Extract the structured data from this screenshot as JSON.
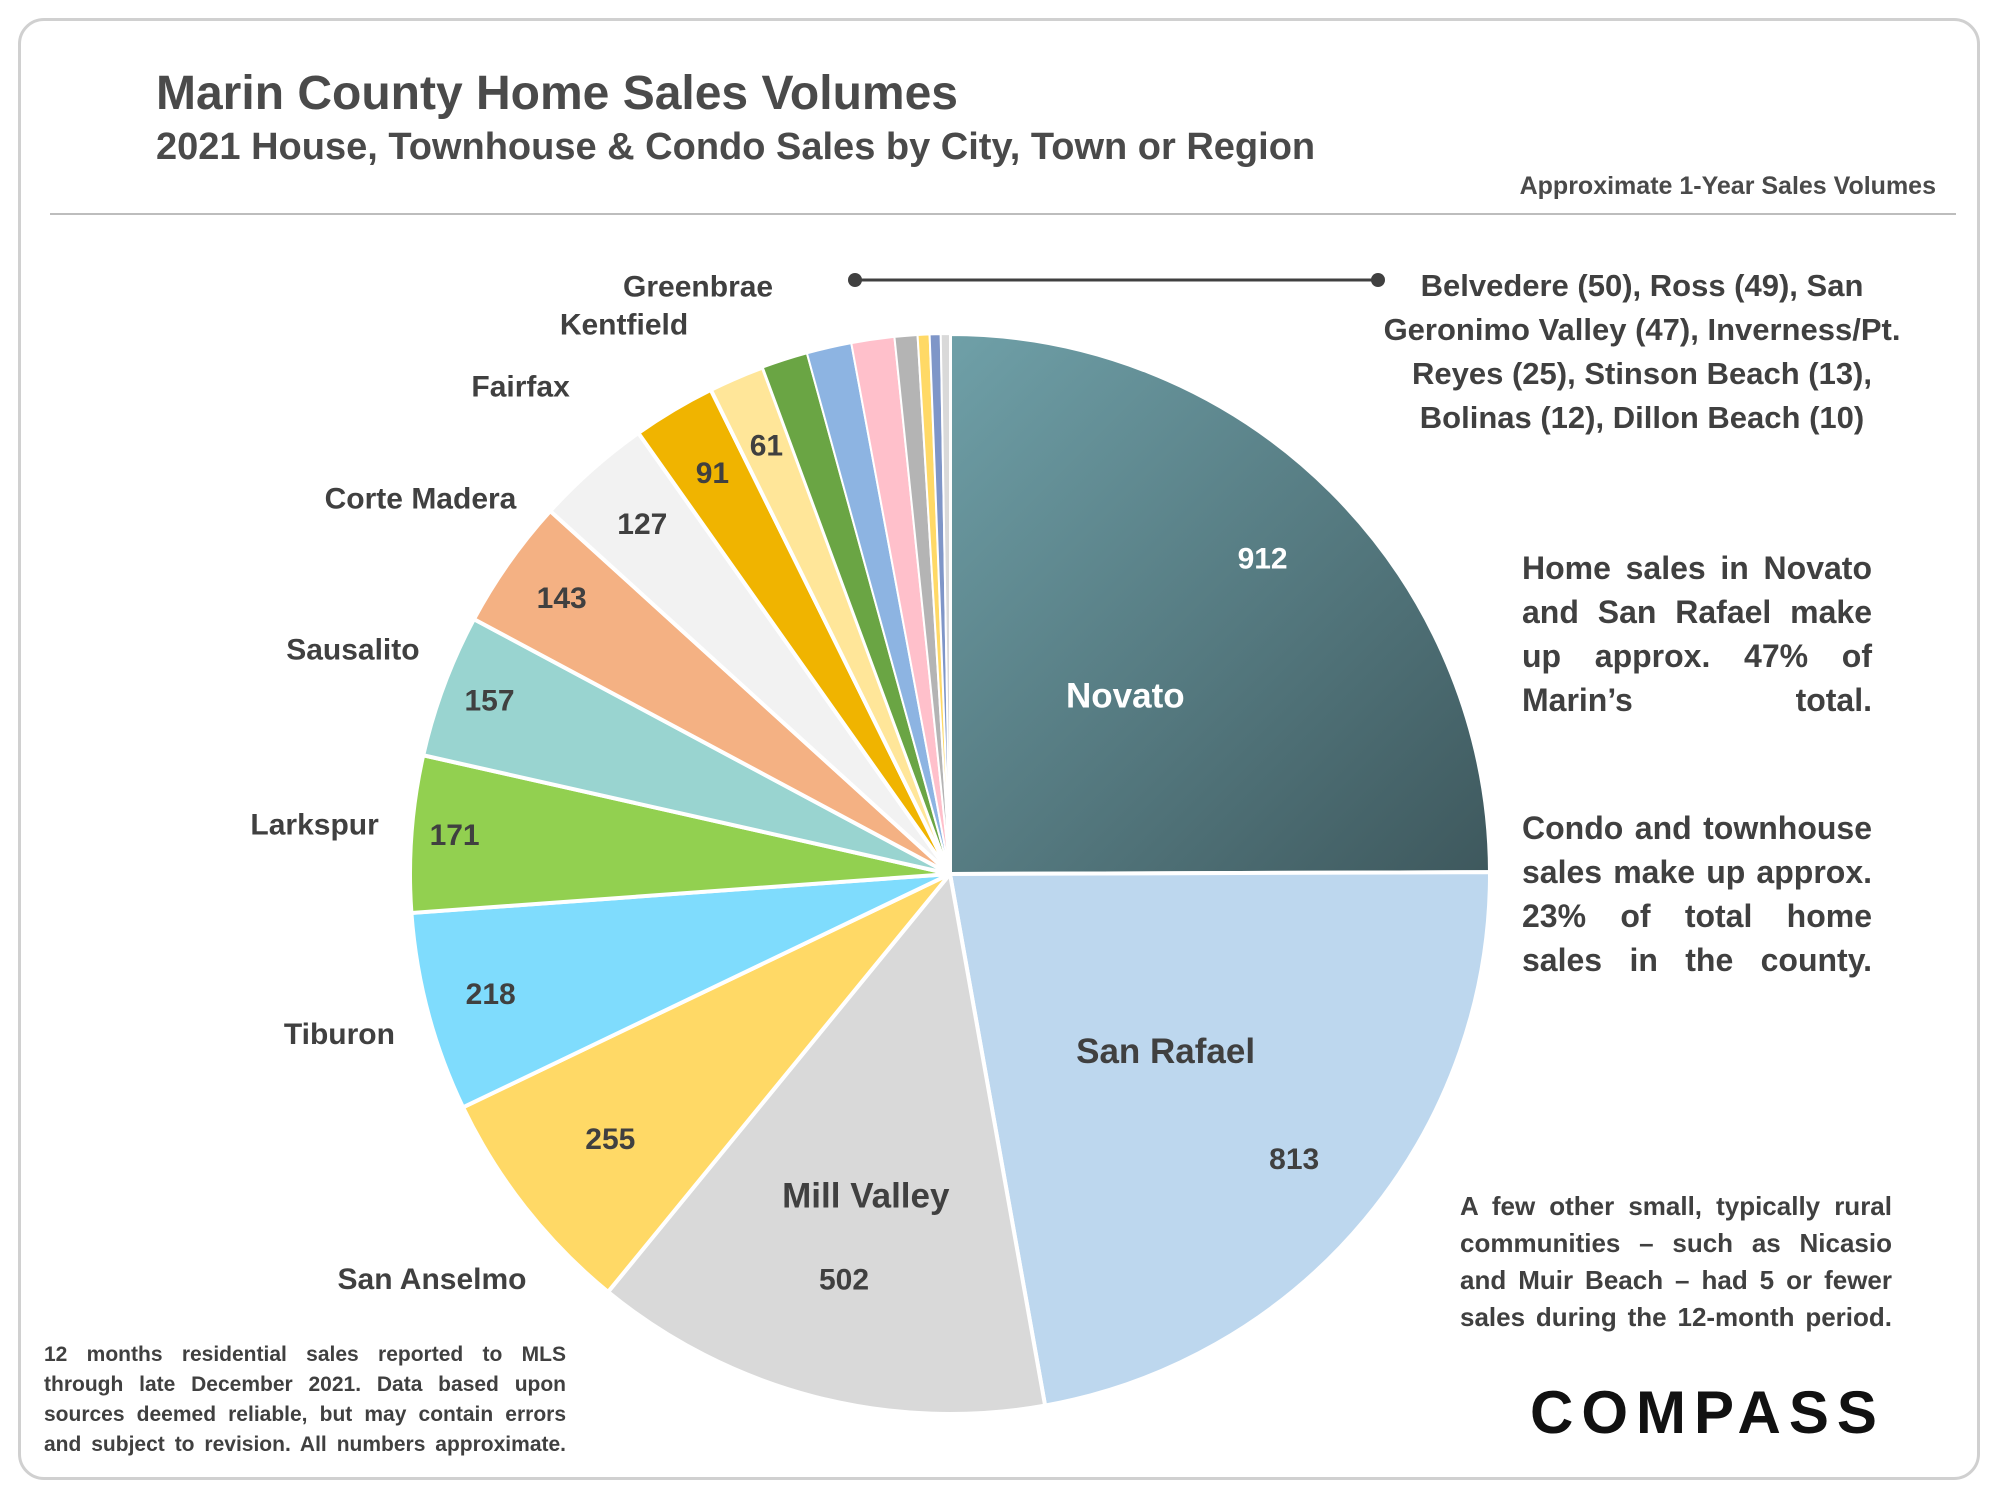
{
  "header": {
    "title": "Marin County Home Sales Volumes",
    "subtitle": "2021 House, Townhouse & Condo Sales by City, Town or Region",
    "corner_note": "Approximate 1-Year Sales Volumes"
  },
  "notes": {
    "small_cities": "Belvedere (50), Ross (49), San Geronimo Valley (47), Inverness/Pt. Reyes (25), Stinson Beach (13), Bolinas (12), Dillon Beach (10)",
    "novato_san_rafael": "Home sales in Novato and San Rafael make up approx. 47% of Marin’s total.",
    "condo_townhouse": "Condo and townhouse sales make up approx. 23% of total home sales in the county.",
    "rural": "A few other small, typically rural communities – such as Nicasio and Muir Beach – had 5 or fewer sales during the 12-month period."
  },
  "footnote": "12 months residential sales reported to MLS through late December 2021. Data based upon sources deemed reliable, but may contain errors and subject to revision. All numbers approximate.",
  "logo": "COMPASS",
  "chart_data": {
    "type": "pie",
    "title": "Marin County Home Sales Volumes",
    "subtitle": "2021 House, Townhouse & Condo Sales by City, Town or Region",
    "start": "12 o'clock",
    "direction": "clockwise",
    "slices": [
      {
        "name": "Novato",
        "value": 912,
        "color": "#5d8791",
        "label_shown": true,
        "value_shown": true
      },
      {
        "name": "San Rafael",
        "value": 813,
        "color": "#bdd7ee",
        "label_shown": true,
        "value_shown": true
      },
      {
        "name": "Mill Valley",
        "value": 502,
        "color": "#d9d9d9",
        "label_shown": true,
        "value_shown": true
      },
      {
        "name": "San Anselmo",
        "value": 255,
        "color": "#ffd966",
        "label_shown": true,
        "value_shown": true
      },
      {
        "name": "Tiburon",
        "value": 218,
        "color": "#7fdcfd",
        "label_shown": true,
        "value_shown": true
      },
      {
        "name": "Larkspur",
        "value": 171,
        "color": "#92d050",
        "label_shown": true,
        "value_shown": true
      },
      {
        "name": "Sausalito",
        "value": 157,
        "color": "#99d4d0",
        "label_shown": true,
        "value_shown": true
      },
      {
        "name": "Corte Madera",
        "value": 143,
        "color": "#f4b183",
        "label_shown": true,
        "value_shown": true
      },
      {
        "name": "Fairfax",
        "value": 127,
        "color": "#f2f2f2",
        "label_shown": true,
        "value_shown": true
      },
      {
        "name": "Kentfield",
        "value": 91,
        "color": "#f0b400",
        "label_shown": true,
        "value_shown": true
      },
      {
        "name": "Greenbrae",
        "value": 61,
        "color": "#ffe699",
        "label_shown": true,
        "value_shown": true
      },
      {
        "name": "Belvedere",
        "value": 50,
        "color": "#6aa544",
        "label_shown": false,
        "value_shown": false
      },
      {
        "name": "Ross",
        "value": 49,
        "color": "#8db4e2",
        "label_shown": false,
        "value_shown": false
      },
      {
        "name": "San Geronimo Valley",
        "value": 47,
        "color": "#ffc0cb",
        "label_shown": false,
        "value_shown": false
      },
      {
        "name": "Inverness/Pt. Reyes",
        "value": 25,
        "color": "#b4b4b4",
        "label_shown": false,
        "value_shown": false
      },
      {
        "name": "Stinson Beach",
        "value": 13,
        "color": "#ffd966",
        "label_shown": false,
        "value_shown": false
      },
      {
        "name": "Bolinas",
        "value": 12,
        "color": "#7f96c8",
        "label_shown": false,
        "value_shown": false
      },
      {
        "name": "Dillon Beach",
        "value": 10,
        "color": "#d9d9d9",
        "label_shown": false,
        "value_shown": false
      }
    ]
  }
}
